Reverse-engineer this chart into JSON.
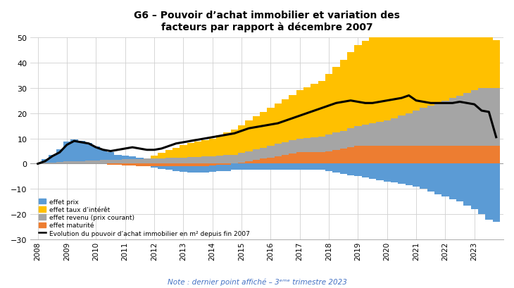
{
  "title_line1": "G6 – Pouvoir d’achat immobilier et variation des",
  "title_line2": "facteurs par rapport à décembre 2007",
  "note": "Note : dernier point affiché – 3ᵉᵐᵉ trimestre 2023",
  "ylim": [
    -30,
    50
  ],
  "yticks": [
    -30,
    -20,
    -10,
    0,
    10,
    20,
    30,
    40,
    50
  ],
  "colors": {
    "prix": "#5B9BD5",
    "taux": "#FFC000",
    "revenu": "#A5A5A5",
    "maturite": "#ED7D31",
    "line": "#000000",
    "background": "#FFFFFF",
    "grid": "#D0D0D0",
    "note": "#4472C4"
  },
  "labels": {
    "prix": "effet prix",
    "taux": "effet taux d’intérêt",
    "revenu": "effet revenu (prix courant)",
    "maturite": "effet maturité",
    "line": "Evolution du pouvoir d’achat immobilier en m² depuis fin 2007"
  },
  "x_labels": [
    "2008",
    "2009",
    "2010",
    "2011",
    "2012",
    "2013",
    "2014",
    "2015",
    "2016",
    "2017",
    "2018",
    "2019",
    "2020",
    "2021",
    "2022",
    "2023"
  ],
  "n_quarters": 64,
  "prix": [
    0.0,
    1.5,
    3.0,
    5.0,
    8.0,
    8.5,
    8.0,
    7.0,
    5.5,
    4.0,
    3.0,
    2.0,
    1.5,
    1.0,
    0.5,
    0.2,
    -0.5,
    -1.0,
    -1.5,
    -2.0,
    -2.2,
    -2.4,
    -2.5,
    -2.5,
    -2.5,
    -2.5,
    -2.5,
    -2.5,
    -2.5,
    -2.5,
    -2.5,
    -2.5,
    -2.5,
    -2.5,
    -2.5,
    -2.5,
    -2.5,
    -2.5,
    -2.5,
    -2.5,
    -3.0,
    -3.5,
    -4.0,
    -4.5,
    -5.0,
    -5.5,
    -6.0,
    -6.5,
    -7.0,
    -7.5,
    -8.0,
    -8.5,
    -9.0,
    -10.0,
    -11.0,
    -12.0,
    -13.0,
    -14.0,
    -15.0,
    -16.5,
    -18.0,
    -20.0,
    -22.0,
    -23.0
  ],
  "taux": [
    0.0,
    0.0,
    0.0,
    0.0,
    0.0,
    0.0,
    0.0,
    0.0,
    0.0,
    0.0,
    0.0,
    0.0,
    0.0,
    0.0,
    0.0,
    0.0,
    1.0,
    2.0,
    3.0,
    4.0,
    5.0,
    5.5,
    6.0,
    6.5,
    7.0,
    8.0,
    9.0,
    10.0,
    11.0,
    12.0,
    13.0,
    14.0,
    15.0,
    16.0,
    17.0,
    18.0,
    19.0,
    20.0,
    21.0,
    22.0,
    24.0,
    26.0,
    28.0,
    30.0,
    32.0,
    33.0,
    34.0,
    35.0,
    36.0,
    37.0,
    38.0,
    38.5,
    38.0,
    37.0,
    36.0,
    35.5,
    35.0,
    34.5,
    34.0,
    33.0,
    31.0,
    28.0,
    22.0,
    19.0
  ],
  "revenu": [
    0.0,
    0.3,
    0.5,
    0.7,
    0.9,
    1.0,
    1.1,
    1.2,
    1.3,
    1.4,
    1.5,
    1.6,
    1.7,
    1.8,
    1.9,
    2.0,
    2.1,
    2.2,
    2.3,
    2.4,
    2.5,
    2.6,
    2.7,
    2.8,
    3.0,
    3.2,
    3.4,
    3.6,
    3.8,
    4.0,
    4.2,
    4.4,
    4.6,
    4.8,
    5.0,
    5.2,
    5.5,
    5.8,
    6.0,
    6.2,
    6.5,
    6.8,
    7.0,
    7.5,
    8.0,
    8.5,
    9.0,
    9.5,
    10.0,
    11.0,
    12.0,
    13.0,
    14.0,
    15.0,
    16.0,
    17.0,
    18.0,
    19.0,
    20.0,
    21.0,
    22.0,
    23.0,
    23.0,
    23.0
  ],
  "maturite": [
    0.0,
    0.0,
    0.0,
    0.0,
    0.0,
    0.0,
    0.0,
    0.0,
    0.0,
    0.0,
    -0.3,
    -0.5,
    -0.7,
    -0.8,
    -0.9,
    -1.0,
    -1.0,
    -1.0,
    -1.0,
    -1.0,
    -1.0,
    -1.0,
    -1.0,
    -1.0,
    -0.8,
    -0.5,
    -0.3,
    0.0,
    0.5,
    1.0,
    1.5,
    2.0,
    2.5,
    3.0,
    3.5,
    4.0,
    4.5,
    4.5,
    4.5,
    4.5,
    5.0,
    5.5,
    6.0,
    6.5,
    7.0,
    7.0,
    7.0,
    7.0,
    7.0,
    7.0,
    7.0,
    7.0,
    7.0,
    7.0,
    7.0,
    7.0,
    7.0,
    7.0,
    7.0,
    7.0,
    7.0,
    7.0,
    7.0,
    7.0
  ],
  "line": [
    0.0,
    1.0,
    3.0,
    4.5,
    7.5,
    9.0,
    8.5,
    8.0,
    6.5,
    5.5,
    5.0,
    5.5,
    6.0,
    6.5,
    6.0,
    5.5,
    5.5,
    6.0,
    7.0,
    8.0,
    8.5,
    9.0,
    9.5,
    10.0,
    10.5,
    11.0,
    11.5,
    12.0,
    13.0,
    14.0,
    14.5,
    15.0,
    15.5,
    16.0,
    17.0,
    18.0,
    19.0,
    20.0,
    21.0,
    22.0,
    23.0,
    24.0,
    24.5,
    25.0,
    24.5,
    24.0,
    24.0,
    24.5,
    25.0,
    25.5,
    26.0,
    27.0,
    25.0,
    24.5,
    24.0,
    24.0,
    24.0,
    24.0,
    24.5,
    24.0,
    23.5,
    21.0,
    20.5,
    10.5
  ]
}
